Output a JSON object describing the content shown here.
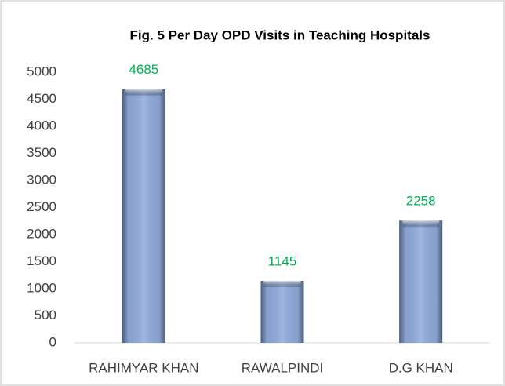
{
  "chart_data": {
    "type": "bar",
    "title": "Fig. 5 Per Day OPD Visits in Teaching Hospitals",
    "categories": [
      "RAHIMYAR KHAN",
      "RAWALPINDI",
      "D.G KHAN"
    ],
    "values": [
      4685,
      1145,
      2258
    ],
    "color": "#8faadc",
    "label_color": "#00b050",
    "ylim": [
      0,
      5000
    ],
    "yticks": [
      0,
      500,
      1000,
      1500,
      2000,
      2500,
      3000,
      3500,
      4000,
      4500,
      5000
    ],
    "grid": false
  }
}
